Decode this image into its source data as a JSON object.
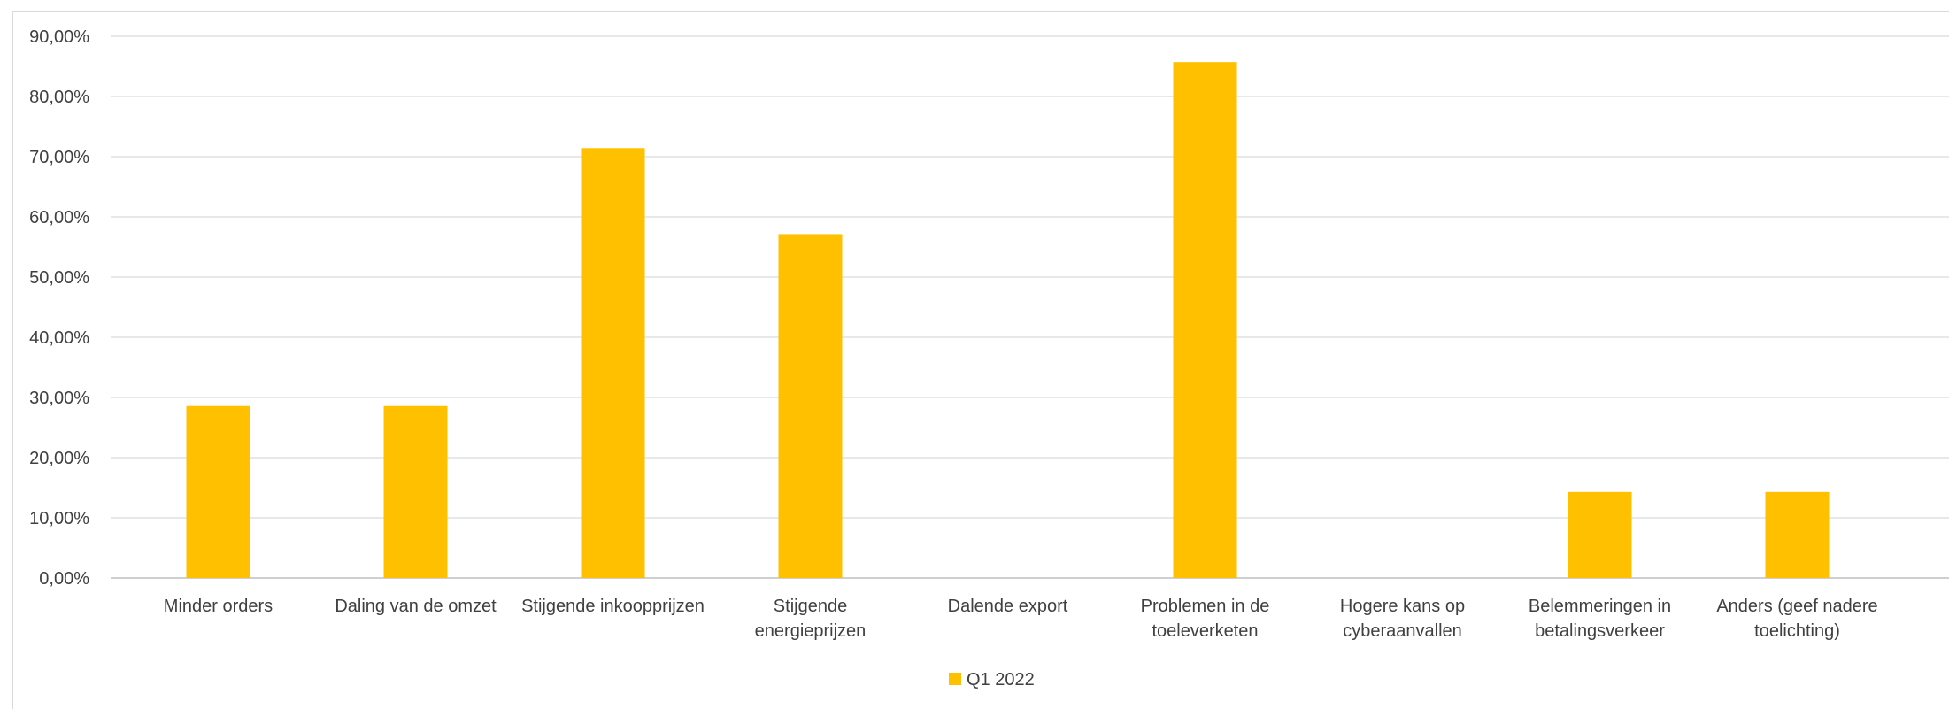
{
  "chart_data": {
    "type": "bar",
    "categories": [
      [
        "Minder orders"
      ],
      [
        "Daling van de omzet"
      ],
      [
        "Stijgende inkoopprijzen"
      ],
      [
        "Stijgende",
        "energieprijzen"
      ],
      [
        "Dalende export"
      ],
      [
        "Problemen in de",
        "toeleverketen"
      ],
      [
        "Hogere kans op",
        "cyberaanvallen"
      ],
      [
        "Belemmeringen in",
        "betalingsverkeer"
      ],
      [
        "Anders (geef nadere",
        "toelichting)"
      ]
    ],
    "series": [
      {
        "name": "Q1 2022",
        "color": "#FFC000",
        "values": [
          0.2857,
          0.2857,
          0.7143,
          0.5714,
          0,
          0.8571,
          0,
          0.1429,
          0.1429
        ]
      }
    ],
    "ylim": [
      0,
      0.9
    ],
    "yticks": [
      "0,00%",
      "10,00%",
      "20,00%",
      "30,00%",
      "40,00%",
      "50,00%",
      "60,00%",
      "70,00%",
      "80,00%",
      "90,00%"
    ],
    "grid": true,
    "legend": "bottom"
  }
}
